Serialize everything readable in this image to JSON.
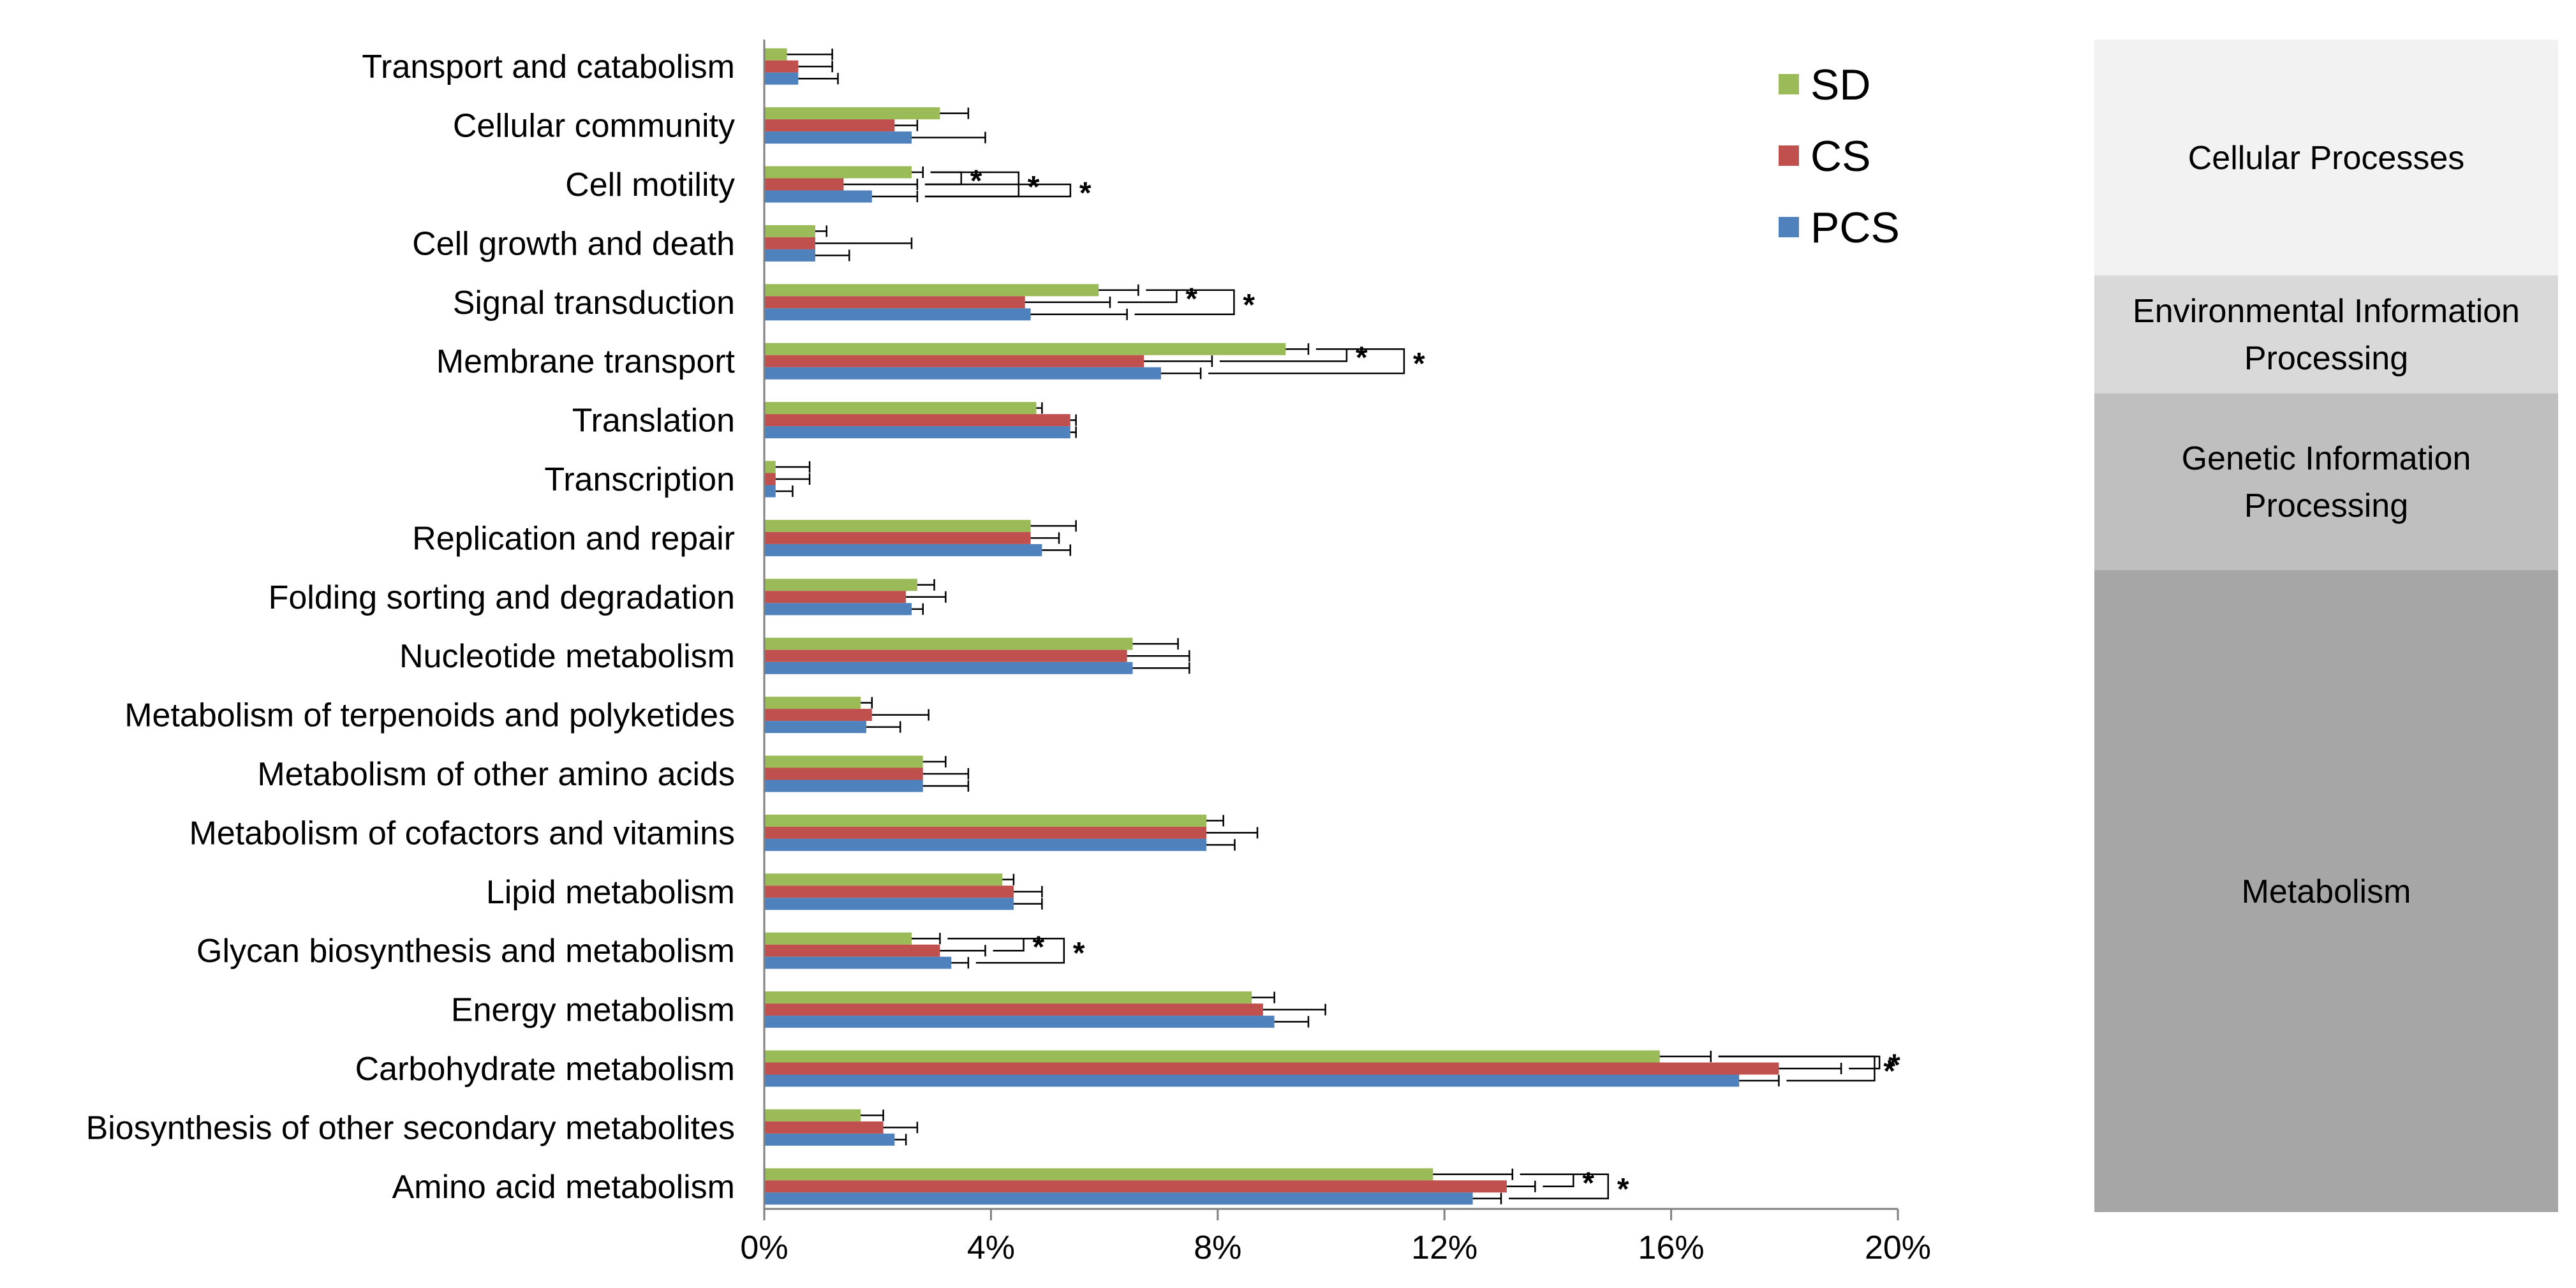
{
  "chart_data": {
    "type": "bar",
    "orientation": "horizontal",
    "title": "",
    "xlabel": "",
    "ylabel": "",
    "xlim": [
      0,
      20
    ],
    "x_ticks": [
      0,
      4,
      8,
      12,
      16,
      20
    ],
    "x_tick_labels": [
      "0%",
      "4%",
      "8%",
      "12%",
      "16%",
      "20%"
    ],
    "grid": false,
    "legend_position": "top-right",
    "categories": [
      "Transport and catabolism",
      "Cellular community",
      "Cell motility",
      "Cell growth and death",
      "Signal transduction",
      "Membrane transport",
      "Translation",
      "Transcription",
      "Replication and repair",
      "Folding sorting and degradation",
      "Nucleotide metabolism",
      "Metabolism of terpenoids and polyketides",
      "Metabolism of other amino acids",
      "Metabolism of cofactors and vitamins",
      "Lipid metabolism",
      "Glycan biosynthesis and metabolism",
      "Energy metabolism",
      "Carbohydrate metabolism",
      "Biosynthesis of other secondary metabolites",
      "Amino acid metabolism"
    ],
    "series": [
      {
        "name": "SD",
        "color": "#9bbb59",
        "values": [
          0.4,
          3.1,
          2.6,
          0.9,
          5.9,
          9.2,
          4.8,
          0.2,
          4.7,
          2.7,
          6.5,
          1.7,
          2.8,
          7.8,
          4.2,
          2.6,
          8.6,
          15.8,
          1.7,
          11.8
        ],
        "errors": [
          0.8,
          0.5,
          0.2,
          0.2,
          0.7,
          0.4,
          0.1,
          0.6,
          0.8,
          0.3,
          0.8,
          0.2,
          0.4,
          0.3,
          0.2,
          0.5,
          0.4,
          0.9,
          0.4,
          1.4
        ]
      },
      {
        "name": "CS",
        "color": "#c0504d",
        "values": [
          0.6,
          2.3,
          1.4,
          0.9,
          4.6,
          6.7,
          5.4,
          0.2,
          4.7,
          2.5,
          6.4,
          1.9,
          2.8,
          7.8,
          4.4,
          3.1,
          8.8,
          17.9,
          2.1,
          13.1
        ],
        "errors": [
          0.6,
          0.4,
          1.3,
          1.7,
          1.5,
          1.2,
          0.1,
          0.6,
          0.5,
          0.7,
          1.1,
          1.0,
          0.8,
          0.9,
          0.5,
          0.8,
          1.1,
          1.1,
          0.6,
          0.5
        ]
      },
      {
        "name": "PCS",
        "color": "#4f81bd",
        "values": [
          0.6,
          2.6,
          1.9,
          0.9,
          4.7,
          7.0,
          5.4,
          0.2,
          4.9,
          2.6,
          6.5,
          1.8,
          2.8,
          7.8,
          4.4,
          3.3,
          9.0,
          17.2,
          2.3,
          12.5
        ],
        "errors": [
          0.7,
          1.3,
          0.8,
          0.6,
          1.7,
          0.7,
          0.1,
          0.3,
          0.5,
          0.2,
          1.0,
          0.6,
          0.8,
          0.5,
          0.5,
          0.3,
          0.6,
          0.7,
          0.2,
          0.5
        ]
      }
    ],
    "annotations": {
      "significance_marker": "*",
      "brackets": [
        {
          "category": "Cell motility",
          "pairs": [
            "SD-CS",
            "SD-PCS",
            "CS-PCS"
          ]
        },
        {
          "category": "Signal transduction",
          "pairs": [
            "SD-CS",
            "SD-PCS"
          ]
        },
        {
          "category": "Membrane transport",
          "pairs": [
            "SD-CS",
            "SD-PCS"
          ]
        },
        {
          "category": "Glycan biosynthesis and metabolism",
          "pairs": [
            "SD-CS",
            "SD-PCS"
          ]
        },
        {
          "category": "Carbohydrate metabolism",
          "pairs": [
            "SD-CS",
            "SD-PCS"
          ]
        },
        {
          "category": "Amino acid metabolism",
          "pairs": [
            "SD-CS",
            "SD-PCS"
          ]
        }
      ]
    },
    "groups": [
      {
        "label_lines": [
          "Cellular Processes"
        ],
        "from": "Transport and catabolism",
        "to": "Cell growth and death",
        "color": "#f2f2f2"
      },
      {
        "label_lines": [
          "Environmental Information",
          "Processing"
        ],
        "from": "Signal transduction",
        "to": "Membrane transport",
        "color": "#d9d9d9"
      },
      {
        "label_lines": [
          "Genetic Information",
          "Processing"
        ],
        "from": "Translation",
        "to": "Replication and repair",
        "color": "#bfbfbf"
      },
      {
        "label_lines": [
          "Metabolism"
        ],
        "from": "Folding sorting and degradation",
        "to": "Amino acid metabolism",
        "color": "#a6a6a6"
      }
    ]
  }
}
